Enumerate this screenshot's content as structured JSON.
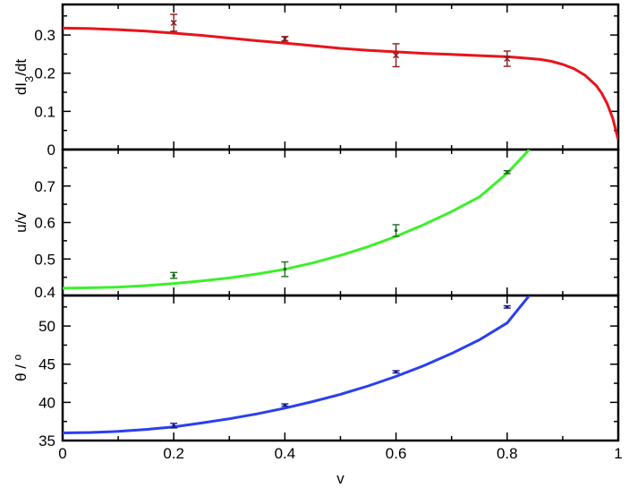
{
  "chart_data": [
    {
      "type": "line",
      "ylabel": "dI",
      "ylabel_sub": "3",
      "ylabel_suffix": "/dt",
      "xlim": [
        0,
        1
      ],
      "ylim": [
        0,
        0.38
      ],
      "yticks": [
        0,
        0.1,
        0.2,
        0.3
      ],
      "ytick_labels": [
        "0",
        "0.1",
        "0.2",
        "0.3"
      ],
      "grid": false,
      "curve_color": "#e8141c",
      "marker_color": "#8b1a1a",
      "marker": "x",
      "curve": {
        "x": [
          0,
          0.05,
          0.1,
          0.15,
          0.2,
          0.25,
          0.3,
          0.35,
          0.4,
          0.45,
          0.5,
          0.55,
          0.6,
          0.65,
          0.7,
          0.75,
          0.8,
          0.83,
          0.86,
          0.88,
          0.9,
          0.92,
          0.94,
          0.96,
          0.97,
          0.98,
          0.99,
          1.0
        ],
        "y": [
          0.318,
          0.317,
          0.314,
          0.31,
          0.305,
          0.299,
          0.292,
          0.285,
          0.279,
          0.272,
          0.265,
          0.26,
          0.256,
          0.252,
          0.249,
          0.246,
          0.243,
          0.24,
          0.236,
          0.231,
          0.223,
          0.212,
          0.195,
          0.168,
          0.148,
          0.12,
          0.082,
          0.025
        ]
      },
      "points": [
        {
          "x": 0.2,
          "y": 0.332,
          "err": 0.022
        },
        {
          "x": 0.4,
          "y": 0.29,
          "err": 0.006
        },
        {
          "x": 0.6,
          "y": 0.247,
          "err": 0.03
        },
        {
          "x": 0.8,
          "y": 0.238,
          "err": 0.02
        }
      ]
    },
    {
      "type": "line",
      "ylabel": "u/v",
      "xlim": [
        0,
        1
      ],
      "ylim": [
        0.4,
        0.8
      ],
      "yticks": [
        0.4,
        0.5,
        0.6,
        0.7
      ],
      "ytick_labels": [
        "0.4",
        "0.5",
        "0.6",
        "0.7"
      ],
      "grid": false,
      "curve_color": "#3cf02a",
      "marker_color": "#1e6b1e",
      "marker": "dot",
      "curve": {
        "x": [
          0,
          0.05,
          0.1,
          0.15,
          0.2,
          0.25,
          0.3,
          0.35,
          0.4,
          0.45,
          0.5,
          0.55,
          0.6,
          0.65,
          0.7,
          0.75,
          0.8,
          0.84
        ],
        "y": [
          0.42,
          0.421,
          0.423,
          0.427,
          0.433,
          0.44,
          0.448,
          0.459,
          0.472,
          0.489,
          0.51,
          0.534,
          0.562,
          0.594,
          0.63,
          0.67,
          0.735,
          0.8
        ]
      },
      "points": [
        {
          "x": 0.2,
          "y": 0.455,
          "err": 0.008
        },
        {
          "x": 0.4,
          "y": 0.472,
          "err": 0.02
        },
        {
          "x": 0.6,
          "y": 0.578,
          "err": 0.016
        },
        {
          "x": 0.8,
          "y": 0.738,
          "err": 0.004
        }
      ]
    },
    {
      "type": "line",
      "ylabel": "θ / º",
      "xlabel": "v",
      "xlim": [
        0,
        1
      ],
      "ylim": [
        35,
        54
      ],
      "yticks": [
        35,
        40,
        45,
        50
      ],
      "ytick_labels": [
        "35",
        "40",
        "45",
        "50"
      ],
      "xticks": [
        0,
        0.2,
        0.4,
        0.6,
        0.8,
        1
      ],
      "xtick_labels": [
        "0",
        "0.2",
        "0.4",
        "0.6",
        "0.8",
        "1"
      ],
      "grid": false,
      "curve_color": "#2a3ff0",
      "marker_color": "#1a1a8b",
      "marker": "dot",
      "curve": {
        "x": [
          0,
          0.05,
          0.1,
          0.15,
          0.2,
          0.25,
          0.3,
          0.35,
          0.4,
          0.45,
          0.5,
          0.55,
          0.6,
          0.65,
          0.7,
          0.75,
          0.8,
          0.84
        ],
        "y": [
          36.0,
          36.05,
          36.2,
          36.45,
          36.8,
          37.3,
          37.85,
          38.5,
          39.25,
          40.1,
          41.05,
          42.15,
          43.4,
          44.8,
          46.4,
          48.2,
          50.4,
          54.0
        ]
      },
      "points": [
        {
          "x": 0.2,
          "y": 36.95,
          "err": 0.3
        },
        {
          "x": 0.4,
          "y": 39.65,
          "err": 0.15
        },
        {
          "x": 0.6,
          "y": 44.0,
          "err": 0.15
        },
        {
          "x": 0.8,
          "y": 52.5,
          "err": 0.15
        }
      ]
    }
  ]
}
